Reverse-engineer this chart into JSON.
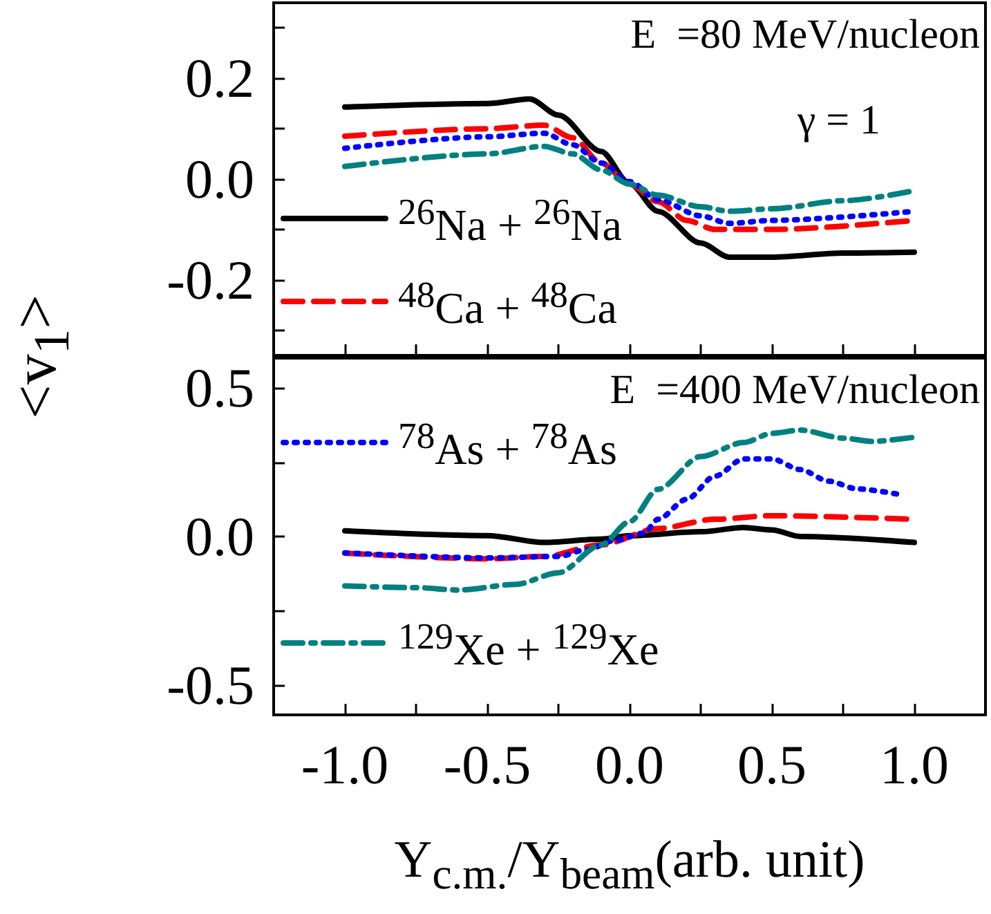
{
  "chart_data": [
    {
      "type": "line",
      "ylabel": "<v$_{1}$>",
      "annotations": [
        "E  =80 MeV/nucleon",
        "γ = 1"
      ],
      "xlim": [
        -1.25,
        1.25
      ],
      "xticks": [
        {
          "value": -1,
          "label": null
        },
        {
          "value": -0.75,
          "label": null
        },
        {
          "value": -0.5,
          "label": null
        },
        {
          "value": -0.25,
          "label": null
        },
        {
          "value": 0,
          "label": null
        },
        {
          "value": 0.25,
          "label": null
        },
        {
          "value": 0.5,
          "label": null
        },
        {
          "value": 0.75,
          "label": null
        },
        {
          "value": 1,
          "label": null
        }
      ],
      "ylim": [
        -0.35,
        0.35
      ],
      "yticks": [
        {
          "value": -0.3,
          "label": null
        },
        -0.2,
        {
          "value": -0.1,
          "label": null
        },
        {
          "value": 0,
          "label": "0.0"
        },
        {
          "value": 0.1,
          "label": null
        },
        0.2,
        {
          "value": 0.3,
          "label": null
        }
      ],
      "tick_labels": "y",
      "grid": false,
      "marker": "none",
      "legend": "bottom left",
      "series": [
        {
          "name": "$^{26}$Na + $^{26}$Na",
          "color": "#000000",
          "line_style": "solid",
          "x": [
            -1,
            -0.5,
            -0.35,
            -0.25,
            -0.1,
            0,
            0.1,
            0.25,
            0.35,
            0.5,
            0.75,
            1
          ],
          "values": [
            0.143,
            0.15,
            0.159,
            0.127,
            0.055,
            -0.009,
            -0.064,
            -0.127,
            -0.155,
            -0.155,
            -0.147,
            -0.145
          ]
        },
        {
          "name": "$^{48}$Ca + $^{48}$Ca",
          "color": "#ff0000",
          "line_style": "dashed",
          "x": [
            -1,
            -0.5,
            -0.3,
            -0.2,
            -0.1,
            0,
            0.1,
            0.2,
            0.3,
            0.5,
            1
          ],
          "values": [
            0.085,
            0.1,
            0.107,
            0.082,
            0.032,
            -0.01,
            -0.045,
            -0.082,
            -0.1,
            -0.1,
            -0.082
          ]
        },
        {
          "color": "#0000ff",
          "line_style": "dotted",
          "x": [
            -1,
            -0.5,
            -0.3,
            -0.2,
            -0.1,
            0,
            0.1,
            0.25,
            0.35,
            0.5,
            1
          ],
          "values": [
            0.061,
            0.084,
            0.091,
            0.068,
            0.032,
            -0.005,
            -0.041,
            -0.073,
            -0.088,
            -0.082,
            -0.064
          ]
        },
        {
          "color": "#008080",
          "line_style": "dashdot",
          "x": [
            -1,
            -0.5,
            -0.3,
            -0.2,
            -0.1,
            0,
            0.1,
            0.25,
            0.35,
            0.5,
            0.75,
            1
          ],
          "values": [
            0.025,
            0.05,
            0.065,
            0.05,
            0.018,
            -0.01,
            -0.032,
            -0.055,
            -0.064,
            -0.059,
            -0.043,
            -0.023
          ]
        }
      ]
    },
    {
      "type": "line",
      "xlabel": "Y$_{c.m.}$/Y$_{beam}$(arb. unit)",
      "annotations": [
        "E  =400 MeV/nucleon"
      ],
      "xlim": [
        -1.25,
        1.25
      ],
      "xticks": [
        {
          "value": -1,
          "label": "-1.0"
        },
        {
          "value": -0.75,
          "label": null
        },
        -0.5,
        {
          "value": -0.25,
          "label": null
        },
        {
          "value": 0,
          "label": "0.0"
        },
        {
          "value": 0.25,
          "label": null
        },
        0.5,
        {
          "value": 0.75,
          "label": null
        },
        {
          "value": 1,
          "label": "1.0"
        }
      ],
      "ylim": [
        -0.6,
        0.6
      ],
      "yticks": [
        -0.5,
        {
          "value": -0.25,
          "label": null
        },
        {
          "value": 0,
          "label": "0.0"
        },
        {
          "value": 0.25,
          "label": null
        },
        0.5
      ],
      "grid": false,
      "marker": "none",
      "legend": "left",
      "series": [
        {
          "color": "#000000",
          "line_style": "solid",
          "x": [
            -1,
            -0.5,
            -0.3,
            -0.1,
            0,
            0.25,
            0.4,
            0.5,
            0.6,
            1
          ],
          "values": [
            0.019,
            0.003,
            -0.02,
            -0.009,
            0.003,
            0.016,
            0.03,
            0.022,
            0,
            -0.02
          ]
        },
        {
          "color": "#ff0000",
          "line_style": "dashed",
          "x": [
            -1,
            -0.5,
            -0.3,
            -0.1,
            0.1,
            0.3,
            0.5,
            1
          ],
          "values": [
            -0.056,
            -0.075,
            -0.067,
            -0.028,
            0.027,
            0.058,
            0.07,
            0.058
          ]
        },
        {
          "name": "$^{78}$As + $^{78}$As",
          "color": "#0000ff",
          "line_style": "dotted",
          "x": [
            -1,
            -0.5,
            -0.25,
            -0.15,
            -0.05,
            0.05,
            0.1,
            0.2,
            0.3,
            0.4,
            0.5,
            0.6,
            0.7,
            0.8,
            0.95
          ],
          "values": [
            -0.055,
            -0.072,
            -0.067,
            -0.044,
            -0.013,
            0.011,
            0.058,
            0.125,
            0.203,
            0.261,
            0.261,
            0.225,
            0.186,
            0.16,
            0.141
          ]
        },
        {
          "name": "$^{129}$Xe + $^{129}$Xe",
          "color": "#008080",
          "line_style": "dashdot",
          "x": [
            -1,
            -0.75,
            -0.6,
            -0.4,
            -0.25,
            -0.1,
            0,
            0.1,
            0.25,
            0.4,
            0.5,
            0.6,
            0.75,
            0.85,
            1
          ],
          "values": [
            -0.166,
            -0.172,
            -0.18,
            -0.161,
            -0.122,
            -0.028,
            0.05,
            0.159,
            0.269,
            0.316,
            0.347,
            0.358,
            0.331,
            0.32,
            0.334
          ]
        }
      ]
    }
  ]
}
